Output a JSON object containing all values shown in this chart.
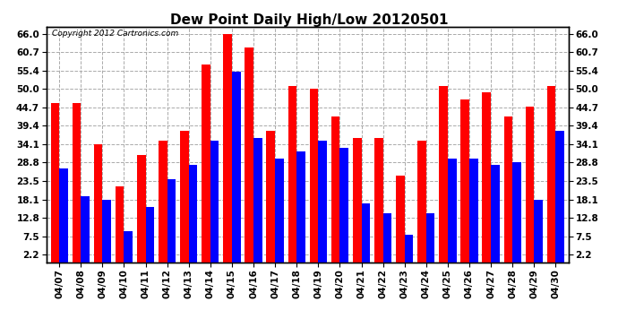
{
  "title": "Dew Point Daily High/Low 20120501",
  "copyright": "Copyright 2012 Cartronics.com",
  "dates": [
    "04/07",
    "04/08",
    "04/09",
    "04/10",
    "04/11",
    "04/12",
    "04/13",
    "04/14",
    "04/15",
    "04/16",
    "04/17",
    "04/18",
    "04/19",
    "04/20",
    "04/21",
    "04/22",
    "04/23",
    "04/24",
    "04/25",
    "04/26",
    "04/27",
    "04/28",
    "04/29",
    "04/30"
  ],
  "highs": [
    46.0,
    46.0,
    34.0,
    22.0,
    31.0,
    35.0,
    38.0,
    57.0,
    66.0,
    62.0,
    38.0,
    51.0,
    50.0,
    42.0,
    36.0,
    36.0,
    25.0,
    35.0,
    51.0,
    47.0,
    49.0,
    42.0,
    45.0,
    51.0
  ],
  "lows": [
    27.0,
    19.0,
    18.0,
    9.0,
    16.0,
    24.0,
    28.0,
    35.0,
    55.0,
    36.0,
    30.0,
    32.0,
    35.0,
    33.0,
    17.0,
    14.0,
    8.0,
    14.0,
    30.0,
    30.0,
    28.0,
    29.0,
    18.0,
    38.0
  ],
  "high_color": "#ff0000",
  "low_color": "#0000ff",
  "background_color": "#ffffff",
  "yticks": [
    2.2,
    7.5,
    12.8,
    18.1,
    23.5,
    28.8,
    34.1,
    39.4,
    44.7,
    50.0,
    55.4,
    60.7,
    66.0
  ],
  "ylim": [
    0,
    68
  ],
  "bar_width": 0.4,
  "grid_color": "#aaaaaa",
  "title_fontsize": 11,
  "tick_fontsize": 7.5,
  "copyright_fontsize": 6.5
}
